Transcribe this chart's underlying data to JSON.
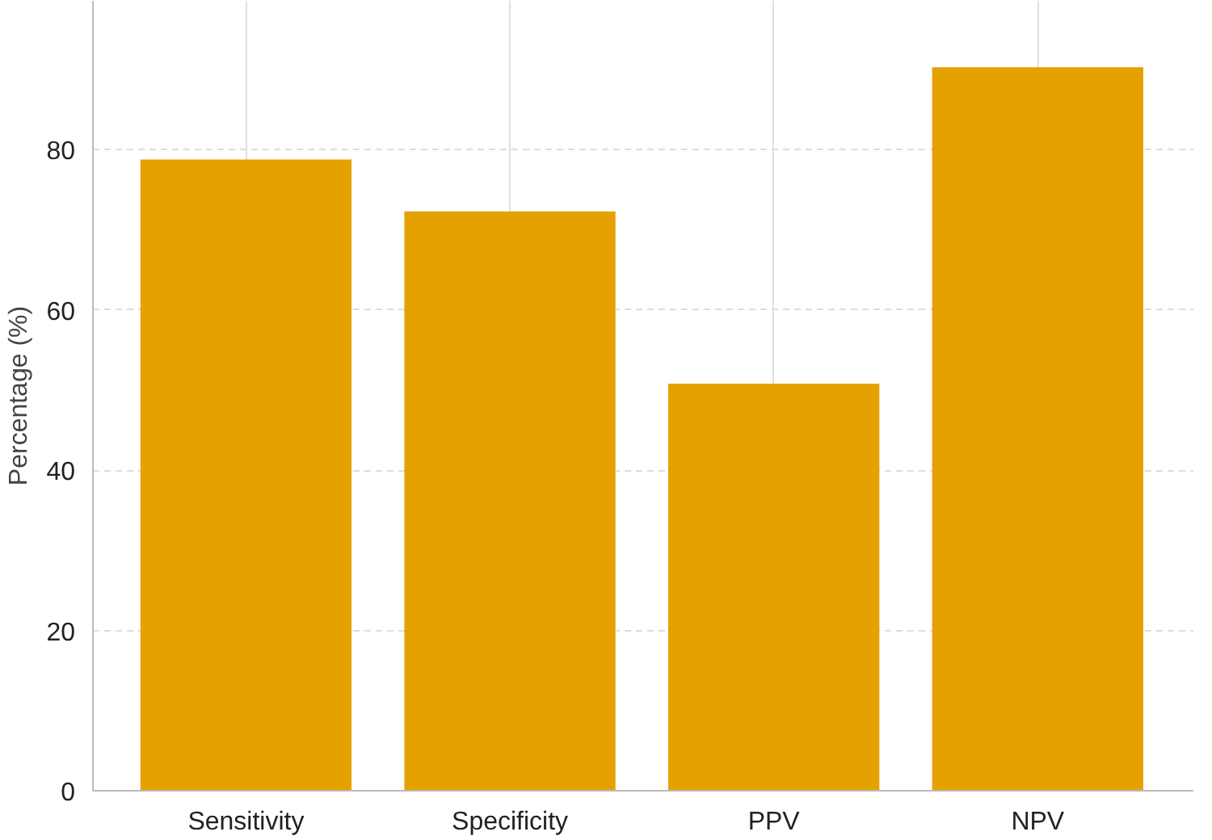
{
  "chart_data": {
    "type": "bar",
    "ylabel": "Percentage (%)",
    "categories": [
      "Sensitivity",
      "Specificity",
      "PPV",
      "NPV"
    ],
    "values": [
      78.8,
      72.3,
      50.8,
      90.3
    ],
    "color": "#e5a100",
    "ylim": [
      0,
      98.6
    ],
    "yticks": [
      0,
      20,
      40,
      60,
      80
    ],
    "grid": true
  }
}
